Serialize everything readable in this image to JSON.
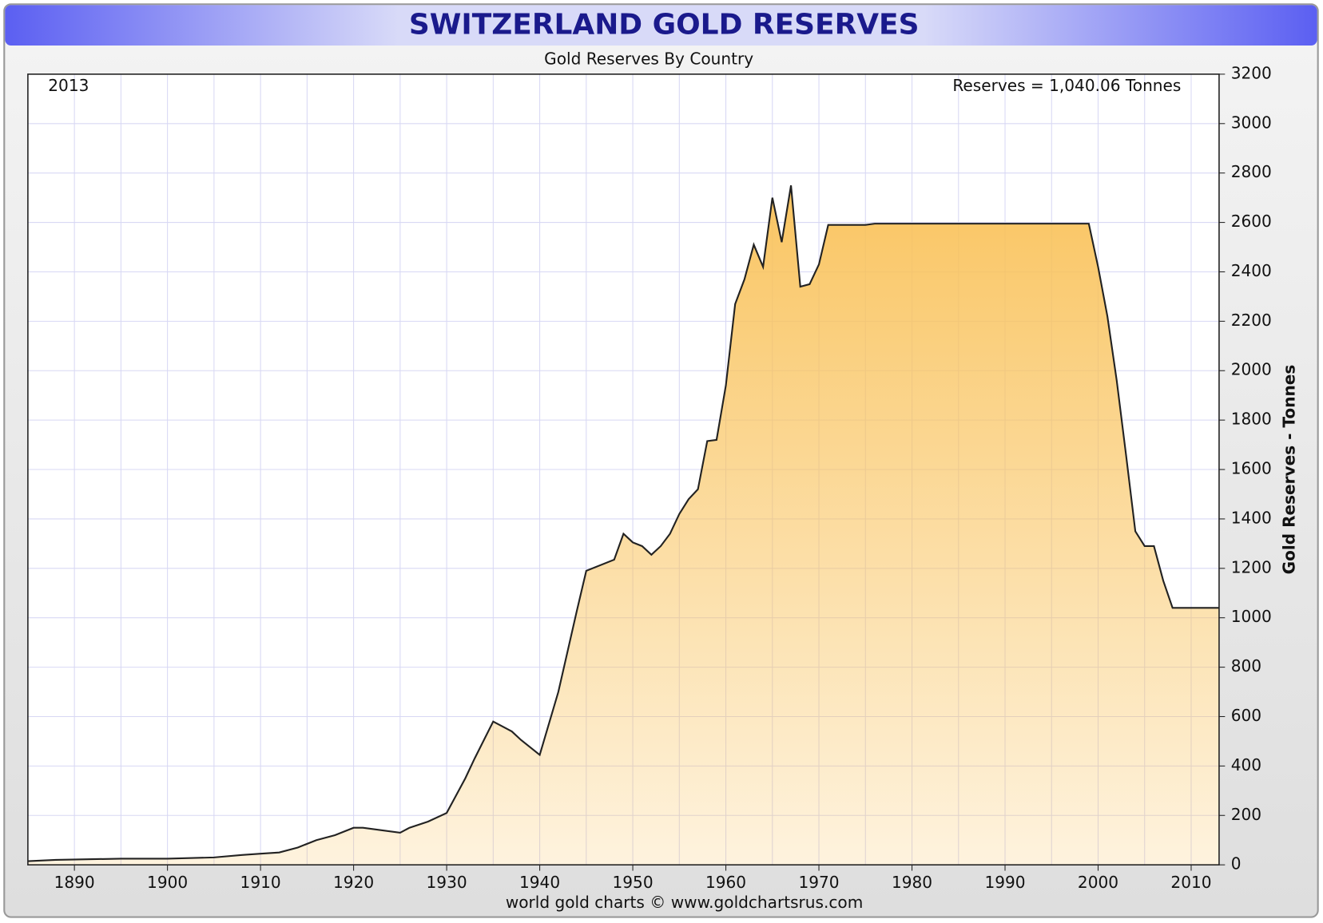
{
  "chart_data": {
    "type": "area",
    "title": "SWITZERLAND GOLD RESERVES",
    "subtitle": "Gold Reserves By Country",
    "y_label": "Gold Reserves - Tonnes",
    "annotations": [
      "2013",
      "Reserves = 1,040.06 Tonnes"
    ],
    "source": "world gold charts © www.goldchartsrus.com",
    "x": [
      1885,
      1888,
      1895,
      1900,
      1905,
      1908,
      1910,
      1912,
      1914,
      1916,
      1918,
      1920,
      1921,
      1923,
      1925,
      1926,
      1928,
      1930,
      1932,
      1933,
      1935,
      1937,
      1938,
      1940,
      1942,
      1944,
      1945,
      1948,
      1949,
      1950,
      1951,
      1952,
      1953,
      1954,
      1955,
      1956,
      1957,
      1958,
      1959,
      1960,
      1961,
      1962,
      1963,
      1964,
      1965,
      1966,
      1967,
      1968,
      1969,
      1970,
      1971,
      1975,
      1976,
      1999,
      2000,
      2001,
      2002,
      2003,
      2004,
      2005,
      2006,
      2007,
      2008,
      2013
    ],
    "values": [
      15,
      20,
      25,
      25,
      30,
      40,
      45,
      50,
      70,
      100,
      120,
      150,
      150,
      140,
      130,
      150,
      175,
      210,
      350,
      430,
      580,
      540,
      505,
      445,
      700,
      1030,
      1190,
      1235,
      1340,
      1305,
      1290,
      1255,
      1290,
      1340,
      1420,
      1480,
      1520,
      1715,
      1720,
      1940,
      2270,
      2370,
      2510,
      2420,
      2700,
      2520,
      2750,
      2340,
      2350,
      2430,
      2590,
      2590,
      2595,
      2595,
      2420,
      2220,
      1960,
      1660,
      1350,
      1290,
      1290,
      1150,
      1040,
      1040.06
    ],
    "color": "#f9c25a",
    "line_color": "#222222",
    "xlim": [
      1885,
      2013
    ],
    "xticks": [
      1890,
      1900,
      1910,
      1920,
      1930,
      1940,
      1950,
      1960,
      1970,
      1980,
      1990,
      2000,
      2010
    ],
    "xgrid_step": 5,
    "ylim": [
      0,
      3200
    ],
    "yticks": [
      0,
      200,
      400,
      600,
      800,
      1000,
      1200,
      1400,
      1600,
      1800,
      2000,
      2200,
      2400,
      2600,
      2800,
      3000,
      3200
    ],
    "grid": true
  }
}
